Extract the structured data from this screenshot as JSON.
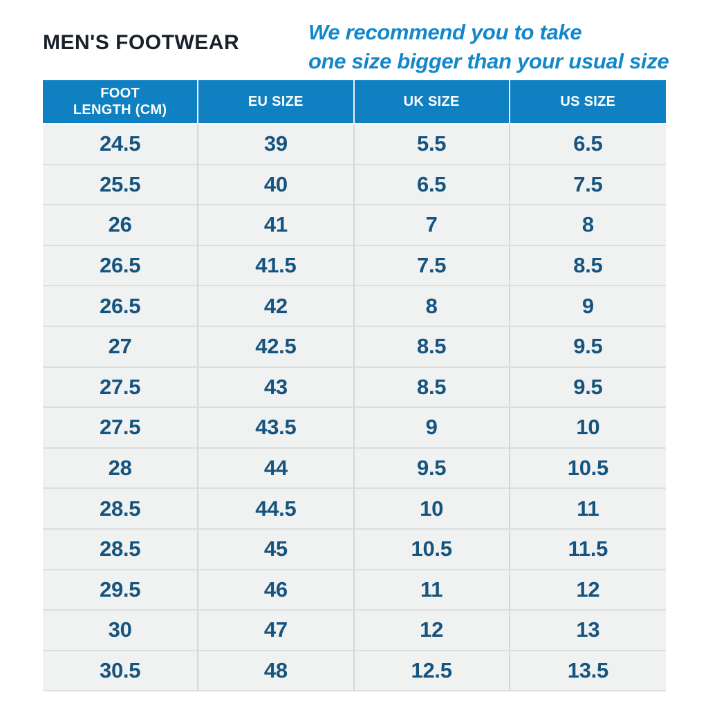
{
  "page": {
    "title": "MEN'S FOOTWEAR",
    "note_line1": "We recommend you to take",
    "note_line2": "one size bigger than your usual size"
  },
  "colors": {
    "header_bg": "#0f80c2",
    "header_text": "#ffffff",
    "note_text": "#1287c9",
    "title_text": "#18202a",
    "cell_text": "#15547e",
    "row_bg": "#f0f1f1"
  },
  "table": {
    "header_col0_display": "FOOT\nLENGTH (CM)"
  },
  "chart_data": {
    "type": "table",
    "title": "MEN'S FOOTWEAR",
    "note": "We recommend you to take one size bigger than your usual size",
    "columns": [
      "FOOT LENGTH (CM)",
      "EU SIZE",
      "UK SIZE",
      "US SIZE"
    ],
    "rows": [
      [
        24.5,
        39,
        5.5,
        6.5
      ],
      [
        25.5,
        40,
        6.5,
        7.5
      ],
      [
        26,
        41,
        7,
        8
      ],
      [
        26.5,
        41.5,
        7.5,
        8.5
      ],
      [
        26.5,
        42,
        8,
        9
      ],
      [
        27,
        42.5,
        8.5,
        9.5
      ],
      [
        27.5,
        43,
        8.5,
        9.5
      ],
      [
        27.5,
        43.5,
        9,
        10
      ],
      [
        28,
        44,
        9.5,
        10.5
      ],
      [
        28.5,
        44.5,
        10,
        11
      ],
      [
        28.5,
        45,
        10.5,
        11.5
      ],
      [
        29.5,
        46,
        11,
        12
      ],
      [
        30,
        47,
        12,
        13
      ],
      [
        30.5,
        48,
        12.5,
        13.5
      ]
    ]
  }
}
